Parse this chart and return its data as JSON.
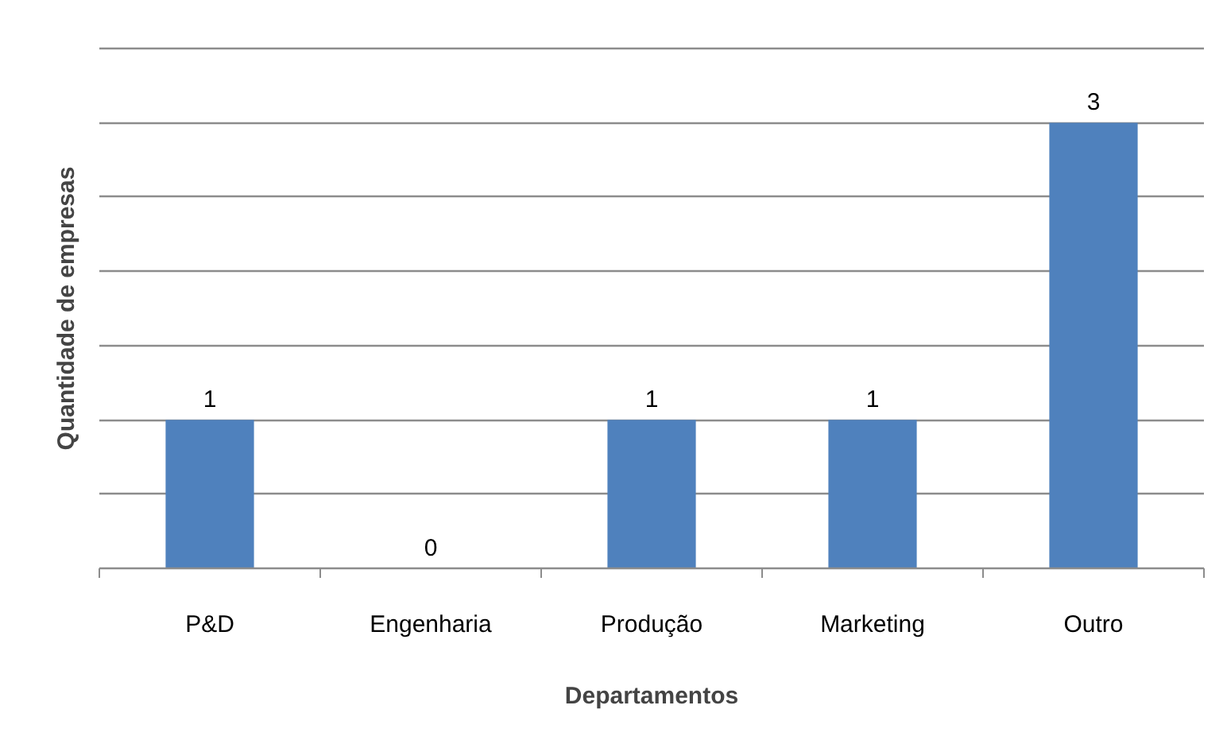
{
  "chart_data": {
    "type": "bar",
    "xlabel": "Departamentos",
    "ylabel": "Quantidade de empresas",
    "categories": [
      "P&D",
      "Engenharia",
      "Produção",
      "Marketing",
      "Outro"
    ],
    "values": [
      1,
      0,
      1,
      1,
      3
    ],
    "color": "#4f81bd",
    "data_labels": true,
    "ylim": [
      0,
      3.5
    ],
    "yticks": [
      {
        "value": 0,
        "label": null
      },
      {
        "value": 0.5,
        "label": null
      },
      {
        "value": 1,
        "label": null
      },
      {
        "value": 1.5,
        "label": null
      },
      {
        "value": 2,
        "label": null
      },
      {
        "value": 2.5,
        "label": null
      },
      {
        "value": 3,
        "label": null
      },
      {
        "value": 3.5,
        "label": null
      }
    ],
    "tick_labels": "x",
    "grid": "y"
  }
}
